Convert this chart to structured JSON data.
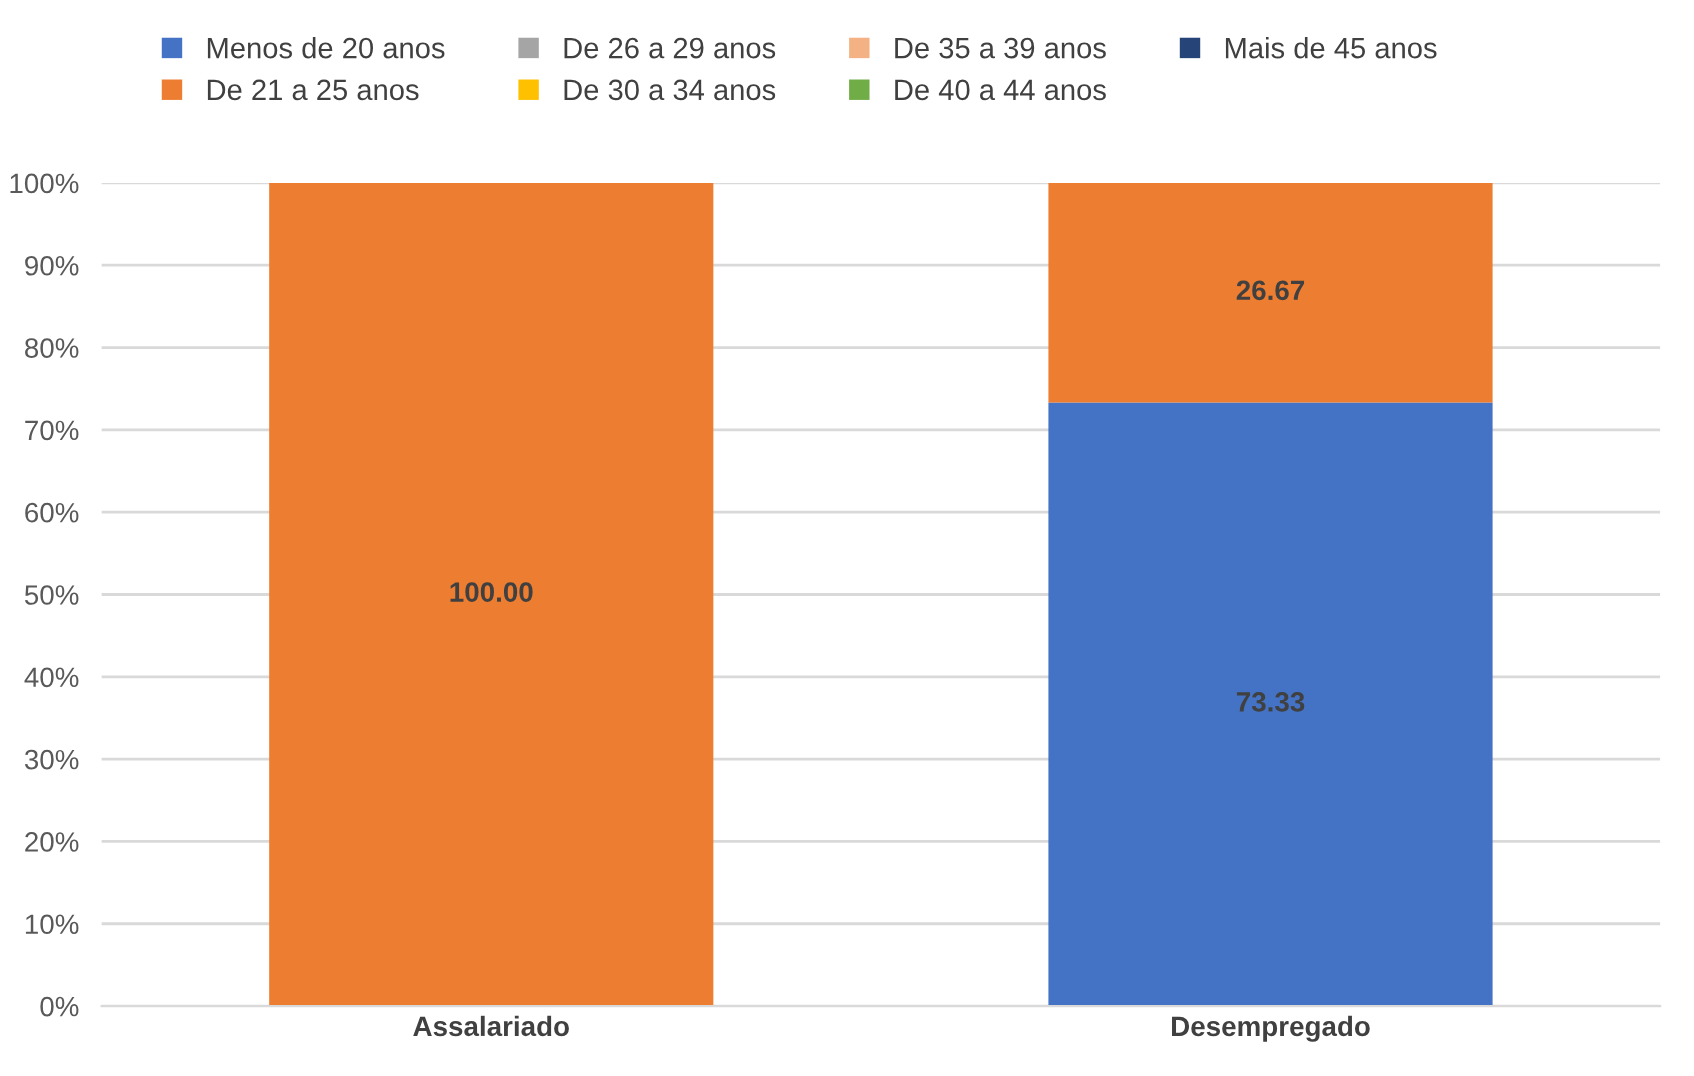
{
  "chart_data": {
    "type": "bar",
    "stacked": true,
    "categories": [
      "Assalariado",
      "Desempregado"
    ],
    "series": [
      {
        "name": "Menos de 20 anos",
        "color": "#4472c4",
        "values": [
          0,
          73.33
        ],
        "value_labels": [
          null,
          "73.33"
        ]
      },
      {
        "name": "De 21 a 25 anos",
        "color": "#ed7d31",
        "values": [
          100.0,
          26.67
        ],
        "value_labels": [
          "100.00",
          "26.67"
        ]
      },
      {
        "name": "De 26 a 29 anos",
        "color": "#a5a5a5",
        "values": [
          0,
          0
        ]
      },
      {
        "name": "De 30 a 34 anos",
        "color": "#ffc000",
        "values": [
          0,
          0
        ]
      },
      {
        "name": "De 35 a 39 anos",
        "color": "#f4b183",
        "values": [
          0,
          0
        ]
      },
      {
        "name": "De 40 a 44 anos",
        "color": "#70ad47",
        "values": [
          0,
          0
        ]
      },
      {
        "name": "Mais de 45 anos",
        "color": "#264478",
        "values": [
          0,
          0
        ]
      }
    ],
    "ylim": [
      0,
      100
    ],
    "yticks": [
      {
        "value": 0,
        "label": "0%"
      },
      {
        "value": 10,
        "label": "10%"
      },
      {
        "value": 20,
        "label": "20%"
      },
      {
        "value": 30,
        "label": "30%"
      },
      {
        "value": 40,
        "label": "40%"
      },
      {
        "value": 50,
        "label": "50%"
      },
      {
        "value": 60,
        "label": "60%"
      },
      {
        "value": 70,
        "label": "70%"
      },
      {
        "value": 80,
        "label": "80%"
      },
      {
        "value": 90,
        "label": "90%"
      },
      {
        "value": 100,
        "label": "100%"
      }
    ],
    "grid": "y",
    "legend": "top"
  }
}
